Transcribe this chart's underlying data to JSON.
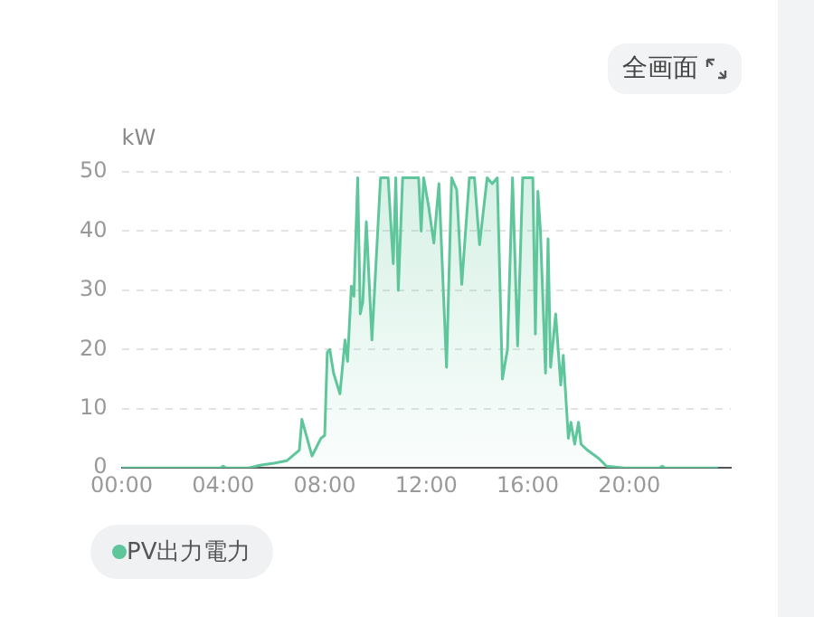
{
  "chart_data": {
    "type": "area",
    "ylabel": "kW",
    "annotations": [
      "全画面"
    ],
    "x": [
      0,
      3.9,
      4.0,
      4.1,
      5.0,
      5.5,
      6.0,
      6.5,
      7.0,
      7.1,
      7.5,
      7.85,
      8.0,
      8.1,
      8.2,
      8.35,
      8.6,
      8.8,
      8.9,
      9.05,
      9.15,
      9.3,
      9.4,
      9.5,
      9.64,
      9.86,
      10.2,
      10.5,
      10.6,
      10.7,
      10.8,
      10.9,
      11.07,
      11.7,
      11.8,
      11.9,
      12.1,
      12.3,
      12.5,
      12.8,
      13.0,
      13.2,
      13.4,
      13.7,
      13.9,
      14.1,
      14.4,
      14.6,
      14.8,
      15.0,
      15.2,
      15.4,
      15.6,
      15.8,
      16.2,
      16.3,
      16.4,
      16.5,
      16.7,
      16.8,
      16.9,
      17.1,
      17.3,
      17.4,
      17.6,
      17.7,
      17.85,
      18.0,
      18.1,
      18.35,
      18.8,
      19.1,
      19.8,
      21.2,
      21.3,
      21.4,
      23.5
    ],
    "series": [
      {
        "name": "PV出力電力",
        "color": "#5fc69b",
        "values": [
          0,
          0,
          0.3,
          0,
          0,
          0.5,
          0.8,
          1.2,
          3,
          8.2,
          2,
          5,
          5.5,
          19.5,
          20,
          16,
          12.5,
          21.6,
          18,
          30.7,
          29,
          49,
          26,
          28,
          41.6,
          21.6,
          49,
          49,
          41.6,
          34.5,
          49,
          30,
          49,
          49,
          40,
          49,
          44,
          38,
          48,
          17,
          49,
          47,
          31,
          49,
          49,
          37.7,
          49,
          48,
          49,
          15,
          20,
          49,
          20.6,
          49,
          49,
          22.6,
          46.7,
          40,
          16,
          38.7,
          17,
          26,
          14,
          19,
          5,
          7.7,
          4,
          7.7,
          4,
          3,
          1.6,
          0.3,
          0,
          0,
          0.3,
          0,
          0
        ]
      }
    ],
    "xlim": [
      0,
      24
    ],
    "xticks": [
      {
        "value": 0,
        "label": "00:00"
      },
      {
        "value": 4,
        "label": "04:00"
      },
      {
        "value": 8,
        "label": "08:00"
      },
      {
        "value": 12,
        "label": "12:00"
      },
      {
        "value": 16,
        "label": "16:00"
      },
      {
        "value": 20,
        "label": "20:00"
      }
    ],
    "ylim": [
      0,
      50
    ],
    "yticks": [
      0,
      10,
      20,
      30,
      40,
      50
    ],
    "grid": "y",
    "legend": "bottom left",
    "marker": "none",
    "line_style": "solid"
  }
}
